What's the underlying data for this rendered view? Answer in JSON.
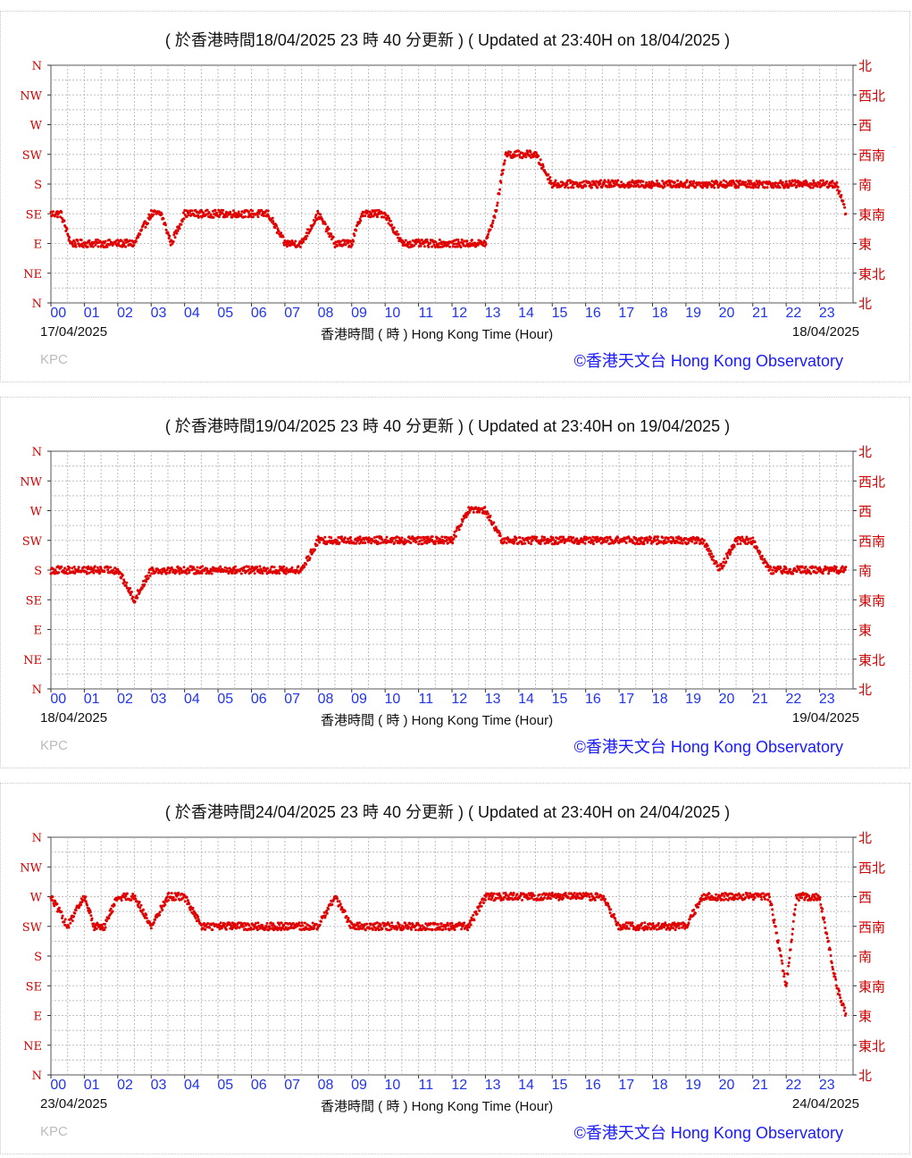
{
  "shared": {
    "y_ticks_left": [
      "N",
      "NW",
      "W",
      "SW",
      "S",
      "SE",
      "E",
      "NE",
      "N"
    ],
    "y_ticks_right": [
      "北",
      "西北",
      "西",
      "西南",
      "南",
      "東南",
      "東",
      "東北",
      "北"
    ],
    "x_ticks": [
      "00",
      "01",
      "02",
      "03",
      "04",
      "05",
      "06",
      "07",
      "08",
      "09",
      "10",
      "11",
      "12",
      "13",
      "14",
      "15",
      "16",
      "17",
      "18",
      "19",
      "20",
      "21",
      "22",
      "23"
    ],
    "x_label": "香港時間 ( 時 )  Hong Kong Time (Hour)",
    "station_code": "KPC",
    "credit": "©香港天文台 Hong Kong Observatory",
    "point_color": "#e00000"
  },
  "chart_data": [
    {
      "type": "scatter",
      "title": "( 於香港時間18/04/2025 23 時 40 分更新 ) ( Updated at 23:40H on 18/04/2025 )",
      "date_start": "17/04/2025",
      "date_end": "18/04/2025",
      "xlabel": "香港時間 ( 時 )  Hong Kong Time (Hour)",
      "y_scale": "wind direction (N, NE, E, SE, S, SW, W, NW, N)",
      "xlim": [
        0,
        24
      ],
      "grid": true,
      "points": [
        [
          0.0,
          "SE"
        ],
        [
          0.3,
          "SE"
        ],
        [
          0.6,
          "E"
        ],
        [
          1.0,
          "E"
        ],
        [
          1.3,
          "E"
        ],
        [
          2.0,
          "E"
        ],
        [
          2.5,
          "E"
        ],
        [
          3.0,
          "SE"
        ],
        [
          3.3,
          "SE"
        ],
        [
          3.6,
          "E"
        ],
        [
          4.0,
          "SE"
        ],
        [
          4.5,
          "SE"
        ],
        [
          5.0,
          "SE"
        ],
        [
          5.5,
          "SE"
        ],
        [
          6.0,
          "SE"
        ],
        [
          6.5,
          "SE"
        ],
        [
          7.0,
          "E"
        ],
        [
          7.5,
          "E"
        ],
        [
          8.0,
          "SE"
        ],
        [
          8.5,
          "E"
        ],
        [
          9.0,
          "E"
        ],
        [
          9.3,
          "SE"
        ],
        [
          10.0,
          "SE"
        ],
        [
          10.5,
          "E"
        ],
        [
          11.0,
          "E"
        ],
        [
          11.5,
          "E"
        ],
        [
          12.0,
          "E"
        ],
        [
          12.5,
          "E"
        ],
        [
          13.0,
          "E"
        ],
        [
          13.3,
          "SE"
        ],
        [
          13.6,
          "SW"
        ],
        [
          14.0,
          "SW"
        ],
        [
          14.5,
          "SW"
        ],
        [
          15.0,
          "S"
        ],
        [
          15.5,
          "S"
        ],
        [
          16.0,
          "S"
        ],
        [
          16.5,
          "S"
        ],
        [
          17.0,
          "S"
        ],
        [
          17.5,
          "S"
        ],
        [
          18.0,
          "S"
        ],
        [
          18.5,
          "S"
        ],
        [
          19.0,
          "S"
        ],
        [
          19.5,
          "S"
        ],
        [
          20.0,
          "S"
        ],
        [
          20.5,
          "S"
        ],
        [
          21.0,
          "S"
        ],
        [
          21.5,
          "S"
        ],
        [
          22.0,
          "S"
        ],
        [
          22.5,
          "S"
        ],
        [
          23.0,
          "S"
        ],
        [
          23.5,
          "S"
        ],
        [
          23.8,
          "SE"
        ]
      ]
    },
    {
      "type": "scatter",
      "title": "( 於香港時間19/04/2025 23 時 40 分更新 ) ( Updated at 23:40H on 19/04/2025 )",
      "date_start": "18/04/2025",
      "date_end": "19/04/2025",
      "xlabel": "香港時間 ( 時 )  Hong Kong Time (Hour)",
      "y_scale": "wind direction (N, NE, E, SE, S, SW, W, NW, N)",
      "xlim": [
        0,
        24
      ],
      "grid": true,
      "points": [
        [
          0.0,
          "S"
        ],
        [
          0.5,
          "S"
        ],
        [
          1.0,
          "S"
        ],
        [
          1.5,
          "S"
        ],
        [
          2.0,
          "S"
        ],
        [
          2.5,
          "SE"
        ],
        [
          3.0,
          "S"
        ],
        [
          3.5,
          "S"
        ],
        [
          4.0,
          "S"
        ],
        [
          4.5,
          "S"
        ],
        [
          5.0,
          "S"
        ],
        [
          5.5,
          "S"
        ],
        [
          6.0,
          "S"
        ],
        [
          6.5,
          "S"
        ],
        [
          7.0,
          "S"
        ],
        [
          7.5,
          "S"
        ],
        [
          8.0,
          "SW"
        ],
        [
          8.5,
          "SW"
        ],
        [
          9.0,
          "SW"
        ],
        [
          9.5,
          "SW"
        ],
        [
          10.0,
          "SW"
        ],
        [
          10.5,
          "SW"
        ],
        [
          11.0,
          "SW"
        ],
        [
          11.5,
          "SW"
        ],
        [
          12.0,
          "SW"
        ],
        [
          12.5,
          "W"
        ],
        [
          13.0,
          "W"
        ],
        [
          13.5,
          "SW"
        ],
        [
          14.0,
          "SW"
        ],
        [
          14.5,
          "SW"
        ],
        [
          15.0,
          "SW"
        ],
        [
          15.5,
          "SW"
        ],
        [
          16.0,
          "SW"
        ],
        [
          16.5,
          "SW"
        ],
        [
          17.0,
          "SW"
        ],
        [
          17.5,
          "SW"
        ],
        [
          18.0,
          "SW"
        ],
        [
          18.5,
          "SW"
        ],
        [
          19.0,
          "SW"
        ],
        [
          19.5,
          "SW"
        ],
        [
          20.0,
          "S"
        ],
        [
          20.5,
          "SW"
        ],
        [
          21.0,
          "SW"
        ],
        [
          21.5,
          "S"
        ],
        [
          22.0,
          "S"
        ],
        [
          22.5,
          "S"
        ],
        [
          23.0,
          "S"
        ],
        [
          23.5,
          "S"
        ],
        [
          23.8,
          "S"
        ]
      ]
    },
    {
      "type": "scatter",
      "title": "( 於香港時間24/04/2025 23 時 40 分更新 ) ( Updated at 23:40H on 24/04/2025 )",
      "date_start": "23/04/2025",
      "date_end": "24/04/2025",
      "xlabel": "香港時間 ( 時 )  Hong Kong Time (Hour)",
      "y_scale": "wind direction (N, NE, E, SE, S, SW, W, NW, N)",
      "xlim": [
        0,
        24
      ],
      "grid": true,
      "points": [
        [
          0.0,
          "W"
        ],
        [
          0.5,
          "SW"
        ],
        [
          1.0,
          "W"
        ],
        [
          1.3,
          "SW"
        ],
        [
          1.6,
          "SW"
        ],
        [
          2.0,
          "W"
        ],
        [
          2.5,
          "W"
        ],
        [
          3.0,
          "SW"
        ],
        [
          3.5,
          "W"
        ],
        [
          4.0,
          "W"
        ],
        [
          4.5,
          "SW"
        ],
        [
          5.0,
          "SW"
        ],
        [
          5.5,
          "SW"
        ],
        [
          6.0,
          "SW"
        ],
        [
          6.5,
          "SW"
        ],
        [
          7.0,
          "SW"
        ],
        [
          7.5,
          "SW"
        ],
        [
          8.0,
          "SW"
        ],
        [
          8.5,
          "W"
        ],
        [
          9.0,
          "SW"
        ],
        [
          9.5,
          "SW"
        ],
        [
          10.0,
          "SW"
        ],
        [
          10.5,
          "SW"
        ],
        [
          11.0,
          "SW"
        ],
        [
          11.5,
          "SW"
        ],
        [
          12.0,
          "SW"
        ],
        [
          12.5,
          "SW"
        ],
        [
          13.0,
          "W"
        ],
        [
          13.5,
          "W"
        ],
        [
          14.0,
          "W"
        ],
        [
          14.5,
          "W"
        ],
        [
          15.0,
          "W"
        ],
        [
          15.5,
          "W"
        ],
        [
          16.0,
          "W"
        ],
        [
          16.5,
          "W"
        ],
        [
          17.0,
          "SW"
        ],
        [
          17.5,
          "SW"
        ],
        [
          18.0,
          "SW"
        ],
        [
          18.5,
          "SW"
        ],
        [
          19.0,
          "SW"
        ],
        [
          19.5,
          "W"
        ],
        [
          20.0,
          "W"
        ],
        [
          20.5,
          "W"
        ],
        [
          21.0,
          "W"
        ],
        [
          21.5,
          "W"
        ],
        [
          22.0,
          "SE"
        ],
        [
          22.3,
          "W"
        ],
        [
          22.5,
          "W"
        ],
        [
          23.0,
          "W"
        ],
        [
          23.5,
          "SE"
        ],
        [
          23.8,
          "E"
        ]
      ]
    }
  ]
}
